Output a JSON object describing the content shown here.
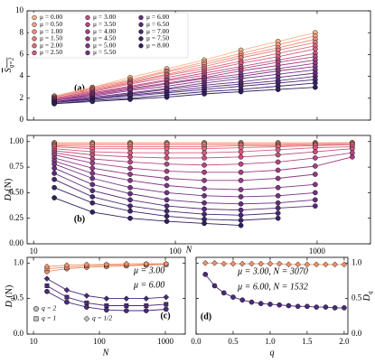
{
  "chart_data": [
    {
      "type": "line",
      "label": "(a)",
      "xscale": "log",
      "xlim": [
        9,
        2380
      ],
      "xticks": [
        10,
        100,
        1000
      ],
      "show_xticklabels": false,
      "ylim": [
        0,
        10
      ],
      "yticks": [
        0,
        2,
        4,
        6,
        8,
        10
      ],
      "ylabel": {
        "main": "S",
        "sub": "q=2"
      },
      "ylabel_overline": true,
      "legend": "upper left",
      "x": [
        14,
        26,
        48,
        87,
        160,
        290,
        530,
        970
      ],
      "series": [
        {
          "name": "μ = 0.00",
          "color": "#fcb68a",
          "values": [
            2.2,
            3.0,
            3.9,
            4.7,
            5.5,
            6.4,
            7.2,
            8.0
          ]
        },
        {
          "name": "μ = 0.50",
          "color": "#f7a083",
          "values": [
            2.2,
            3.0,
            3.7,
            4.5,
            5.3,
            6.1,
            6.9,
            7.7
          ]
        },
        {
          "name": "μ = 1.00",
          "color": "#f18c7f",
          "values": [
            2.1,
            2.9,
            3.6,
            4.4,
            5.1,
            5.9,
            6.6,
            7.4
          ]
        },
        {
          "name": "μ = 1.50",
          "color": "#e97a7c",
          "values": [
            2.1,
            2.8,
            3.5,
            4.2,
            4.9,
            5.7,
            6.4,
            7.1
          ]
        },
        {
          "name": "μ = 2.00",
          "color": "#df6a7c",
          "values": [
            2.0,
            2.7,
            3.4,
            4.1,
            4.7,
            5.4,
            6.1,
            6.8
          ]
        },
        {
          "name": "μ = 2.50",
          "color": "#d35c7e",
          "values": [
            2.0,
            2.6,
            3.3,
            3.9,
            4.5,
            5.2,
            5.8,
            6.5
          ]
        },
        {
          "name": "μ = 3.00",
          "color": "#c55080",
          "values": [
            1.9,
            2.5,
            3.1,
            3.7,
            4.3,
            4.9,
            5.5,
            6.1
          ]
        },
        {
          "name": "μ = 3.50",
          "color": "#b54782",
          "values": [
            1.9,
            2.5,
            3.0,
            3.6,
            4.1,
            4.7,
            5.3,
            5.8
          ]
        },
        {
          "name": "μ = 4.00",
          "color": "#a43f84",
          "values": [
            1.8,
            2.4,
            2.9,
            3.4,
            3.9,
            4.5,
            5.0,
            5.5
          ]
        },
        {
          "name": "μ = 4.50",
          "color": "#943a85",
          "values": [
            1.8,
            2.3,
            2.8,
            3.3,
            3.8,
            4.2,
            4.7,
            5.2
          ]
        },
        {
          "name": "μ = 5.00",
          "color": "#833685",
          "values": [
            1.8,
            2.2,
            2.7,
            3.1,
            3.6,
            4.0,
            4.5,
            4.9
          ]
        },
        {
          "name": "μ = 5.50",
          "color": "#733283",
          "values": [
            1.7,
            2.1,
            2.5,
            2.9,
            3.4,
            3.8,
            4.2,
            4.6
          ]
        },
        {
          "name": "μ = 6.00",
          "color": "#632e7f",
          "values": [
            1.7,
            2.0,
            2.4,
            2.8,
            3.2,
            3.5,
            3.9,
            4.3
          ]
        },
        {
          "name": "μ = 6.50",
          "color": "#552a7a",
          "values": [
            1.6,
            2.0,
            2.3,
            2.6,
            3.0,
            3.3,
            3.6,
            4.0
          ]
        },
        {
          "name": "μ = 7.00",
          "color": "#472672",
          "values": [
            1.6,
            1.9,
            2.2,
            2.5,
            2.8,
            3.1,
            3.4,
            3.7
          ]
        },
        {
          "name": "μ = 7.50",
          "color": "#3a2268",
          "values": [
            1.5,
            1.8,
            2.0,
            2.3,
            2.6,
            2.8,
            3.1,
            3.4
          ]
        },
        {
          "name": "μ = 8.00",
          "color": "#2e1e5c",
          "values": [
            1.5,
            1.7,
            1.9,
            2.1,
            2.4,
            2.6,
            2.8,
            3.0
          ]
        }
      ]
    },
    {
      "type": "line",
      "label": "(b)",
      "xscale": "log",
      "xlim": [
        9,
        2380
      ],
      "xticks": [
        10,
        100,
        1000
      ],
      "xlabel": "N",
      "ylim": [
        0,
        1.06
      ],
      "yticks": [
        {
          "value": 0,
          "label": "0.00"
        },
        {
          "value": 0.25,
          "label": "0.25"
        },
        {
          "value": 0.5,
          "label": "0.50"
        },
        {
          "value": 0.75,
          "label": "0.75"
        },
        {
          "value": 1,
          "label": "1.00"
        }
      ],
      "ylabel": {
        "main": "D",
        "sub": "2",
        "tail": "(N)"
      },
      "x": [
        14,
        26,
        48,
        87,
        160,
        290,
        530,
        970,
        1770
      ],
      "series": [
        {
          "color": "#fcb68a",
          "values": [
            0.99,
            0.99,
            0.99,
            0.99,
            0.99,
            0.99,
            0.99,
            0.99,
            0.99
          ]
        },
        {
          "color": "#f7a083",
          "values": [
            0.98,
            0.98,
            0.98,
            0.98,
            0.98,
            0.98,
            0.98,
            0.98,
            0.99
          ]
        },
        {
          "color": "#f18c7f",
          "values": [
            0.97,
            0.97,
            0.97,
            0.97,
            0.97,
            0.97,
            0.97,
            0.98,
            0.98
          ]
        },
        {
          "color": "#e97a7c",
          "values": [
            0.96,
            0.95,
            0.95,
            0.95,
            0.95,
            0.96,
            0.96,
            0.97,
            0.97
          ]
        },
        {
          "color": "#df6a7c",
          "values": [
            0.95,
            0.93,
            0.93,
            0.93,
            0.93,
            0.94,
            0.95,
            0.96,
            0.97
          ]
        },
        {
          "color": "#d35c7e",
          "values": [
            0.93,
            0.9,
            0.89,
            0.89,
            0.89,
            0.9,
            0.92,
            0.94,
            0.95
          ]
        },
        {
          "color": "#c55080",
          "values": [
            0.91,
            0.87,
            0.85,
            0.84,
            0.84,
            0.85,
            0.87,
            0.9,
            0.93
          ]
        },
        {
          "color": "#b54782",
          "values": [
            0.89,
            0.83,
            0.8,
            0.78,
            0.77,
            0.78,
            0.8,
            0.84,
            0.89
          ]
        },
        {
          "color": "#a43f84",
          "values": [
            0.87,
            0.79,
            0.74,
            0.71,
            0.7,
            0.7,
            0.72,
            0.76,
            0.85
          ]
        },
        {
          "color": "#943a85",
          "values": [
            0.84,
            0.74,
            0.68,
            0.64,
            0.62,
            0.62,
            0.64,
            0.68,
            null
          ]
        },
        {
          "color": "#833685",
          "values": [
            0.81,
            0.69,
            0.62,
            0.57,
            0.54,
            0.53,
            0.55,
            0.58,
            null
          ]
        },
        {
          "color": "#733283",
          "values": [
            0.78,
            0.64,
            0.55,
            0.5,
            0.47,
            0.46,
            0.47,
            0.5,
            null
          ]
        },
        {
          "color": "#632e7f",
          "values": [
            0.74,
            0.58,
            0.49,
            0.43,
            0.4,
            0.39,
            0.4,
            0.43,
            null
          ]
        },
        {
          "color": "#552a7a",
          "values": [
            0.69,
            0.52,
            0.43,
            0.37,
            0.34,
            0.33,
            0.35,
            0.37,
            null
          ]
        },
        {
          "color": "#472672",
          "values": [
            0.63,
            0.46,
            0.37,
            0.32,
            0.29,
            0.28,
            0.3,
            null,
            null
          ]
        },
        {
          "color": "#3a2268",
          "values": [
            0.55,
            0.4,
            0.32,
            0.27,
            0.24,
            0.23,
            0.25,
            null,
            null
          ]
        },
        {
          "color": "#2e1e5c",
          "values": [
            0.45,
            0.31,
            0.25,
            0.22,
            0.2,
            0.18,
            null,
            null,
            null
          ]
        }
      ]
    },
    {
      "type": "line",
      "label": "(c)",
      "xscale": "log",
      "xlim": [
        8,
        2000
      ],
      "xticks": [
        10,
        100,
        1000
      ],
      "xlabel": "N",
      "ylim": [
        0,
        1.08
      ],
      "yticks": [
        {
          "value": 0,
          "label": "0.0"
        },
        {
          "value": 0.5,
          "label": "0.5"
        },
        {
          "value": 1,
          "label": "1.0"
        }
      ],
      "ylabel": {
        "main": "D",
        "sub": "q",
        "tail": "(N)"
      },
      "x": [
        16,
        32,
        64,
        128,
        256,
        512,
        1024
      ],
      "annotations": [
        {
          "text": "μ = 3.00",
          "color": "#f0906a"
        },
        {
          "text": "μ = 6.00",
          "color": "#4b2a7e"
        }
      ],
      "legend_entries": [
        {
          "label": "q = 2",
          "marker": "circle"
        },
        {
          "label": "q = 1",
          "marker": "square"
        },
        {
          "label": "q = 1/2",
          "marker": "diamond"
        }
      ],
      "legend_color": "#bdbdbd",
      "series": [
        {
          "color": "#f0906a",
          "marker": "circle",
          "values": [
            0.88,
            0.92,
            0.94,
            0.95,
            0.96,
            0.97,
            0.98
          ]
        },
        {
          "color": "#f0906a",
          "marker": "square",
          "values": [
            0.92,
            0.94,
            0.96,
            0.97,
            0.97,
            0.98,
            0.98
          ]
        },
        {
          "color": "#f0906a",
          "marker": "diamond",
          "values": [
            0.95,
            0.97,
            0.98,
            0.98,
            0.99,
            0.99,
            0.99
          ]
        },
        {
          "color": "#4b2a7e",
          "marker": "circle",
          "values": [
            0.6,
            0.45,
            0.38,
            0.34,
            0.33,
            0.33,
            0.35
          ]
        },
        {
          "color": "#4b2a7e",
          "marker": "square",
          "values": [
            0.68,
            0.52,
            0.44,
            0.4,
            0.4,
            0.4,
            0.42
          ]
        },
        {
          "color": "#4b2a7e",
          "marker": "diamond",
          "values": [
            0.78,
            0.62,
            0.54,
            0.5,
            0.5,
            0.5,
            0.52
          ]
        }
      ]
    },
    {
      "type": "line",
      "label": "(d)",
      "xscale": "linear",
      "xlim": [
        0,
        2.05
      ],
      "xticks": [
        {
          "value": 0,
          "label": "0.0"
        },
        {
          "value": 0.5,
          "label": "0.5"
        },
        {
          "value": 1,
          "label": "1.0"
        },
        {
          "value": 1.5,
          "label": "1.5"
        },
        {
          "value": 2,
          "label": "2.0"
        }
      ],
      "xlabel": "q",
      "ylim": [
        0,
        1.08
      ],
      "yticks": [
        {
          "value": 0,
          "label": "0.0"
        },
        {
          "value": 0.5,
          "label": "0.5"
        },
        {
          "value": 1,
          "label": "1.0"
        }
      ],
      "yaxis_side": "right",
      "ylabel": {
        "main": "D",
        "sub": "q"
      },
      "x": [
        0.125,
        0.25,
        0.375,
        0.5,
        0.625,
        0.75,
        0.875,
        1.0,
        1.125,
        1.25,
        1.375,
        1.5,
        1.625,
        1.75,
        1.875,
        2.0
      ],
      "annotations": [
        {
          "text": "μ = 3.00, N = 3070",
          "color": "#f0906a"
        },
        {
          "text": "μ = 6.00, N = 1532",
          "color": "#4b2a7e"
        }
      ],
      "series": [
        {
          "color": "#f0906a",
          "marker": "diamond",
          "values": [
            1.0,
            1.0,
            0.99,
            0.99,
            0.99,
            0.99,
            0.99,
            0.99,
            0.99,
            0.98,
            0.98,
            0.98,
            0.98,
            0.98,
            0.98,
            0.98
          ]
        },
        {
          "color": "#4b2a7e",
          "marker": "circle",
          "values": [
            0.84,
            0.68,
            0.58,
            0.52,
            0.48,
            0.45,
            0.43,
            0.42,
            0.41,
            0.4,
            0.39,
            0.39,
            0.38,
            0.38,
            0.37,
            0.37
          ]
        }
      ]
    }
  ]
}
